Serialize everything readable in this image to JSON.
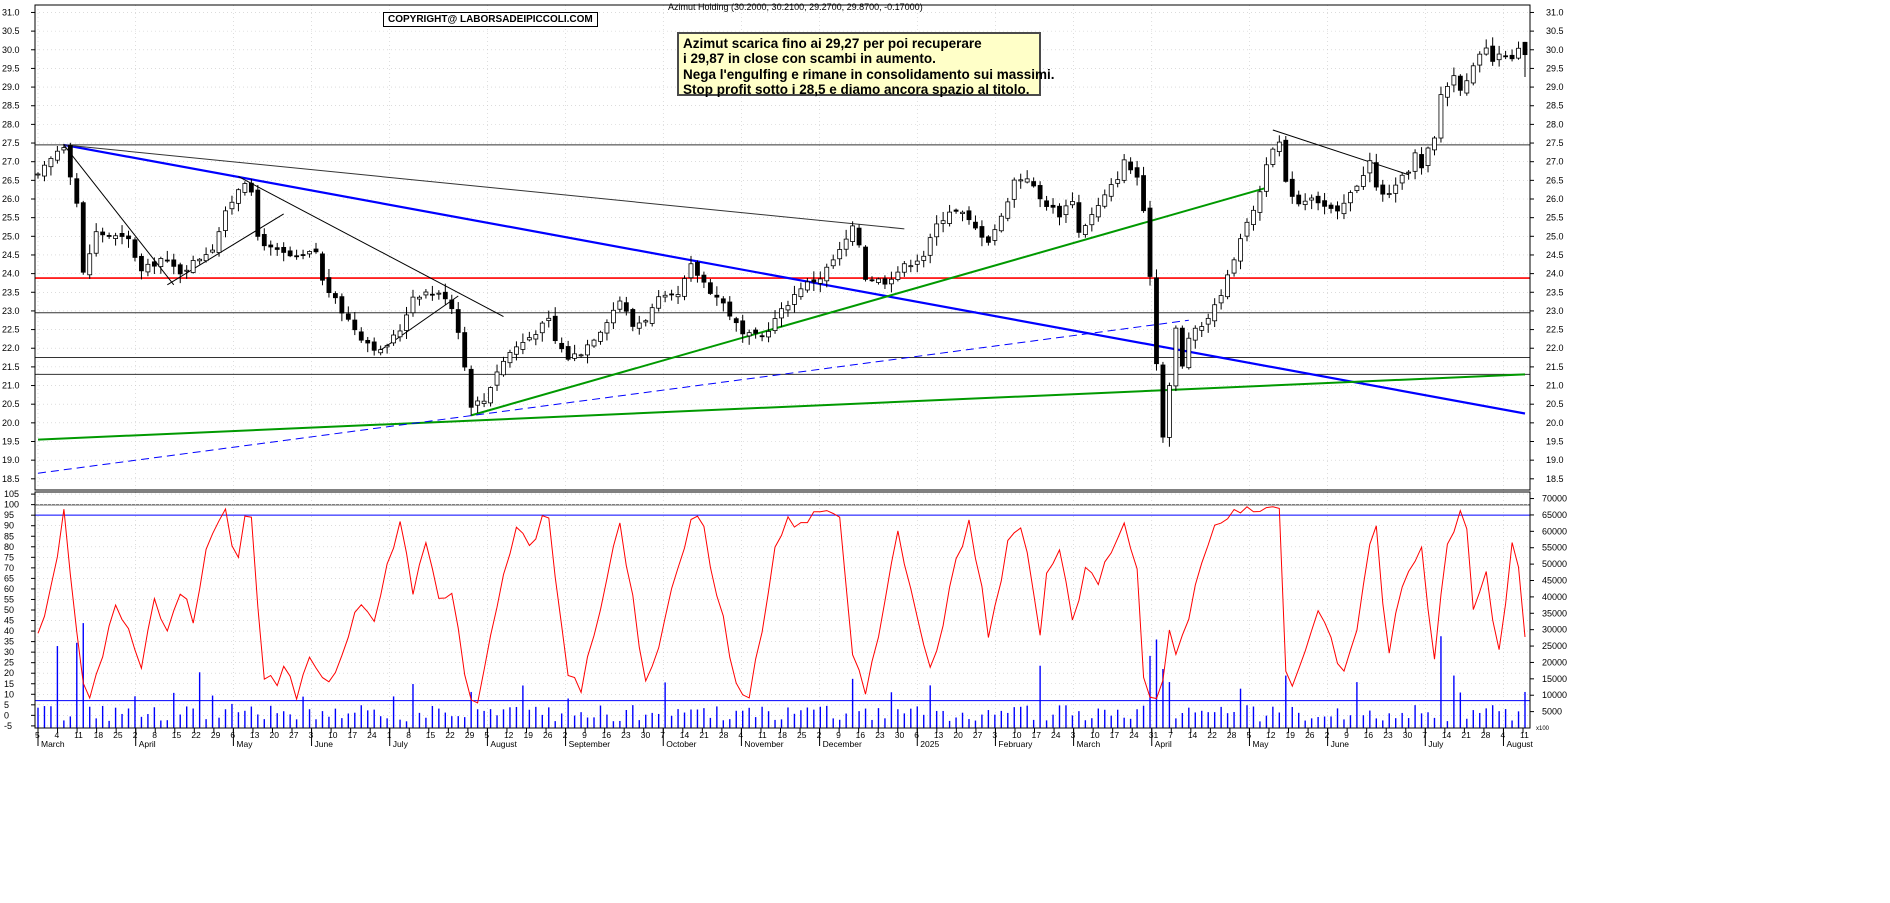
{
  "header": {
    "title": "Azimut Holding (30.2000, 30.2100, 29.2700, 29.8700, -0.17000)",
    "copyright": "COPYRIGHT@ LABORSADEIPICCOLI.COM"
  },
  "annotation": {
    "lines": [
      "Azimut scarica fino ai 29,27 per poi recuperare",
      "i 29,87 in close con scambi in aumento.",
      "Nega l'engulfing e rimane in consolidamento sui massimi.",
      "Stop profit sotto i 28,5 e diamo ancora spazio al titolo."
    ]
  },
  "colors": {
    "candle": "#000000",
    "stochastic": "#ff0000",
    "volume": "#0000ff",
    "trend_blue": "#0000ff",
    "trend_green": "#009900",
    "resistance_red": "#ff0000",
    "annotation_bg": "#ffffc8"
  },
  "chart_data": {
    "type": "candlestick",
    "price_axis": {
      "range": [
        18.2,
        31.2
      ],
      "ticks": [
        "18.5",
        "19.0",
        "19.5",
        "20.0",
        "20.5",
        "21.0",
        "21.5",
        "22.0",
        "22.5",
        "23.0",
        "23.5",
        "24.0",
        "24.5",
        "25.0",
        "25.5",
        "26.0",
        "26.5",
        "27.0",
        "27.5",
        "28.0",
        "28.5",
        "29.0",
        "29.5",
        "30.0",
        "30.5",
        "31.0"
      ]
    },
    "oscillator_axis": {
      "range": [
        -6,
        106
      ],
      "ticks": [
        "-5",
        "0",
        "5",
        "10",
        "15",
        "20",
        "25",
        "30",
        "35",
        "40",
        "45",
        "50",
        "55",
        "60",
        "65",
        "70",
        "75",
        "80",
        "85",
        "90",
        "95",
        "100",
        "105"
      ],
      "levels": [
        95,
        7
      ]
    },
    "volume_axis": {
      "range": [
        0,
        72000
      ],
      "ticks": [
        "5000",
        "10000",
        "15000",
        "20000",
        "25000",
        "30000",
        "35000",
        "40000",
        "45000",
        "50000",
        "55000",
        "60000",
        "65000",
        "70000"
      ],
      "unit_label": "x100"
    },
    "x_axis": {
      "day_labels": [
        "5",
        "4",
        "11",
        "18",
        "25",
        "2",
        "8",
        "15",
        "22",
        "29",
        "6",
        "13",
        "20",
        "27",
        "3",
        "10",
        "17",
        "24",
        "1",
        "8",
        "15",
        "22",
        "29",
        "5",
        "12",
        "19",
        "26",
        "2",
        "9",
        "16",
        "23",
        "30",
        "7",
        "14",
        "21",
        "28",
        "4",
        "11",
        "18",
        "25",
        "2",
        "9",
        "16",
        "23",
        "30",
        "6",
        "13",
        "20",
        "27",
        "3",
        "10",
        "17",
        "24",
        "3",
        "10",
        "17",
        "24",
        "31",
        "7",
        "14",
        "22",
        "28",
        "5",
        "12",
        "19",
        "26",
        "2",
        "9",
        "16",
        "23",
        "30",
        "7",
        "14",
        "21",
        "28",
        "4",
        "11"
      ],
      "month_labels": [
        "March",
        "April",
        "May",
        "June",
        "July",
        "August",
        "September",
        "October",
        "November",
        "December",
        "2025",
        "February",
        "March",
        "April",
        "May",
        "June",
        "July",
        "August"
      ],
      "month_positions": [
        0,
        5,
        10,
        14,
        18,
        23,
        27,
        32,
        36,
        40,
        45,
        49,
        53,
        57,
        62,
        66,
        71,
        75
      ]
    },
    "price_anchors": [
      [
        0,
        26.6
      ],
      [
        3,
        27.3
      ],
      [
        4,
        27.45
      ],
      [
        6,
        25.9
      ],
      [
        7,
        24.0
      ],
      [
        9,
        25.1
      ],
      [
        14,
        24.9
      ],
      [
        16,
        24.05
      ],
      [
        19,
        24.4
      ],
      [
        22,
        24.05
      ],
      [
        24,
        24.3
      ],
      [
        27,
        24.7
      ],
      [
        29,
        25.6
      ],
      [
        31,
        26.3
      ],
      [
        32,
        26.5
      ],
      [
        33,
        26.1
      ],
      [
        34,
        25.0
      ],
      [
        36,
        24.65
      ],
      [
        40,
        24.4
      ],
      [
        43,
        24.6
      ],
      [
        44,
        23.8
      ],
      [
        47,
        23.0
      ],
      [
        50,
        22.3
      ],
      [
        53,
        21.9
      ],
      [
        56,
        22.5
      ],
      [
        58,
        23.4
      ],
      [
        60,
        23.5
      ],
      [
        63,
        23.4
      ],
      [
        64,
        23.1
      ],
      [
        65,
        22.5
      ],
      [
        66,
        21.5
      ],
      [
        67,
        20.5
      ],
      [
        69,
        20.6
      ],
      [
        71,
        21.4
      ],
      [
        73,
        21.9
      ],
      [
        76,
        22.3
      ],
      [
        79,
        22.75
      ],
      [
        80,
        22.2
      ],
      [
        82,
        21.75
      ],
      [
        84,
        21.9
      ],
      [
        87,
        22.5
      ],
      [
        90,
        23.3
      ],
      [
        92,
        22.6
      ],
      [
        94,
        22.8
      ],
      [
        96,
        23.3
      ],
      [
        99,
        23.4
      ],
      [
        101,
        24.2
      ],
      [
        104,
        23.55
      ],
      [
        106,
        23.2
      ],
      [
        109,
        22.35
      ],
      [
        112,
        22.3
      ],
      [
        115,
        23.0
      ],
      [
        118,
        23.65
      ],
      [
        121,
        23.9
      ],
      [
        124,
        24.6
      ],
      [
        126,
        25.2
      ],
      [
        127,
        24.8
      ],
      [
        128,
        23.9
      ],
      [
        131,
        23.8
      ],
      [
        134,
        24.2
      ],
      [
        137,
        24.5
      ],
      [
        139,
        25.3
      ],
      [
        141,
        25.7
      ],
      [
        143,
        25.6
      ],
      [
        145,
        25.2
      ],
      [
        147,
        24.9
      ],
      [
        149,
        25.5
      ],
      [
        151,
        26.5
      ],
      [
        153,
        26.6
      ],
      [
        155,
        26.0
      ],
      [
        158,
        25.6
      ],
      [
        160,
        26.0
      ],
      [
        161,
        25.1
      ],
      [
        164,
        25.8
      ],
      [
        167,
        26.6
      ],
      [
        168,
        27.0
      ],
      [
        170,
        26.6
      ],
      [
        171,
        25.6
      ],
      [
        172,
        24.0
      ],
      [
        173,
        21.6
      ],
      [
        174,
        19.7
      ],
      [
        175,
        21.0
      ],
      [
        176,
        22.5
      ],
      [
        177,
        21.5
      ],
      [
        178,
        22.3
      ],
      [
        180,
        22.6
      ],
      [
        182,
        23.1
      ],
      [
        184,
        23.9
      ],
      [
        186,
        25.0
      ],
      [
        187,
        25.3
      ],
      [
        189,
        26.2
      ],
      [
        190,
        27.0
      ],
      [
        192,
        27.5
      ],
      [
        193,
        26.4
      ],
      [
        195,
        25.9
      ],
      [
        197,
        26.1
      ],
      [
        199,
        25.8
      ],
      [
        201,
        25.6
      ],
      [
        204,
        26.4
      ],
      [
        206,
        27.0
      ],
      [
        207,
        26.3
      ],
      [
        208,
        26.1
      ],
      [
        210,
        26.3
      ],
      [
        212,
        26.8
      ],
      [
        213,
        27.2
      ],
      [
        214,
        26.8
      ],
      [
        215,
        27.3
      ],
      [
        216,
        27.6
      ],
      [
        217,
        28.8
      ],
      [
        219,
        29.3
      ],
      [
        220,
        29.0
      ],
      [
        222,
        29.5
      ],
      [
        223,
        29.8
      ],
      [
        224,
        30.0
      ],
      [
        225,
        29.7
      ],
      [
        227,
        29.9
      ],
      [
        228,
        29.7
      ],
      [
        229,
        30.0
      ],
      [
        230,
        29.87
      ]
    ],
    "candles": {
      "count": 231,
      "last": {
        "open": 30.2,
        "high": 30.21,
        "low": 29.27,
        "close": 29.87,
        "change": -0.17
      }
    },
    "horizontal_levels": [
      {
        "value": 27.45,
        "color": "#333333"
      },
      {
        "value": 23.88,
        "color": "#ff0000"
      },
      {
        "value": 22.95,
        "color": "#333333"
      },
      {
        "value": 21.75,
        "color": "#333333"
      },
      {
        "value": 21.3,
        "color": "#333333"
      },
      {
        "value": 17.8,
        "color": "#333333"
      }
    ],
    "trendlines": [
      {
        "from": [
          4,
          27.45
        ],
        "to": [
          230,
          20.25
        ],
        "color": "#0000ff",
        "width": 2.2
      },
      {
        "from": [
          0,
          19.55
        ],
        "to": [
          230,
          21.3
        ],
        "color": "#009900",
        "width": 2
      },
      {
        "from": [
          67,
          20.2
        ],
        "to": [
          190,
          26.3
        ],
        "color": "#009900",
        "width": 2
      },
      {
        "from": [
          0,
          18.65
        ],
        "to": [
          178,
          22.75
        ],
        "color": "#0000ff",
        "width": 1,
        "dashed": true
      },
      {
        "from": [
          4,
          27.45
        ],
        "to": [
          134,
          25.2
        ],
        "color": "#333333",
        "width": 1
      },
      {
        "from": [
          4,
          27.45
        ],
        "to": [
          21,
          23.7
        ],
        "color": "#000000",
        "width": 1
      },
      {
        "from": [
          20,
          23.7
        ],
        "to": [
          38,
          25.6
        ],
        "color": "#000000",
        "width": 1
      },
      {
        "from": [
          31,
          26.6
        ],
        "to": [
          72,
          22.85
        ],
        "color": "#000000",
        "width": 1
      },
      {
        "from": [
          53,
          21.95
        ],
        "to": [
          65,
          23.4
        ],
        "color": "#000000",
        "width": 1
      },
      {
        "from": [
          191,
          27.85
        ],
        "to": [
          212,
          26.65
        ],
        "color": "#000000",
        "width": 1
      }
    ],
    "stochastic_anchors": [
      [
        0,
        40
      ],
      [
        2,
        60
      ],
      [
        4,
        95
      ],
      [
        6,
        40
      ],
      [
        7,
        15
      ],
      [
        8,
        8
      ],
      [
        10,
        30
      ],
      [
        12,
        55
      ],
      [
        14,
        40
      ],
      [
        16,
        25
      ],
      [
        18,
        55
      ],
      [
        20,
        40
      ],
      [
        22,
        60
      ],
      [
        24,
        45
      ],
      [
        26,
        80
      ],
      [
        28,
        92
      ],
      [
        29,
        95
      ],
      [
        30,
        80
      ],
      [
        31,
        72
      ],
      [
        32,
        95
      ],
      [
        33,
        92
      ],
      [
        34,
        50
      ],
      [
        35,
        20
      ],
      [
        37,
        15
      ],
      [
        38,
        25
      ],
      [
        40,
        10
      ],
      [
        42,
        30
      ],
      [
        44,
        15
      ],
      [
        46,
        18
      ],
      [
        48,
        40
      ],
      [
        50,
        55
      ],
      [
        52,
        45
      ],
      [
        54,
        70
      ],
      [
        56,
        90
      ],
      [
        58,
        60
      ],
      [
        60,
        80
      ],
      [
        62,
        55
      ],
      [
        64,
        60
      ],
      [
        66,
        20
      ],
      [
        67,
        8
      ],
      [
        68,
        5
      ],
      [
        70,
        35
      ],
      [
        72,
        65
      ],
      [
        74,
        90
      ],
      [
        76,
        78
      ],
      [
        78,
        95
      ],
      [
        79,
        96
      ],
      [
        81,
        40
      ],
      [
        82,
        20
      ],
      [
        84,
        10
      ],
      [
        86,
        40
      ],
      [
        88,
        65
      ],
      [
        90,
        90
      ],
      [
        92,
        55
      ],
      [
        93,
        30
      ],
      [
        94,
        15
      ],
      [
        96,
        35
      ],
      [
        98,
        60
      ],
      [
        100,
        80
      ],
      [
        101,
        95
      ],
      [
        103,
        90
      ],
      [
        104,
        70
      ],
      [
        106,
        45
      ],
      [
        108,
        15
      ],
      [
        110,
        10
      ],
      [
        112,
        40
      ],
      [
        114,
        80
      ],
      [
        116,
        92
      ],
      [
        118,
        92
      ],
      [
        120,
        94
      ],
      [
        122,
        95
      ],
      [
        124,
        96
      ],
      [
        126,
        30
      ],
      [
        127,
        20
      ],
      [
        128,
        10
      ],
      [
        130,
        40
      ],
      [
        132,
        70
      ],
      [
        133,
        88
      ],
      [
        135,
        60
      ],
      [
        137,
        35
      ],
      [
        138,
        20
      ],
      [
        140,
        45
      ],
      [
        142,
        75
      ],
      [
        144,
        90
      ],
      [
        146,
        60
      ],
      [
        147,
        38
      ],
      [
        149,
        65
      ],
      [
        150,
        85
      ],
      [
        152,
        90
      ],
      [
        154,
        60
      ],
      [
        155,
        40
      ],
      [
        156,
        65
      ],
      [
        158,
        80
      ],
      [
        160,
        45
      ],
      [
        162,
        70
      ],
      [
        164,
        60
      ],
      [
        166,
        80
      ],
      [
        168,
        92
      ],
      [
        170,
        70
      ],
      [
        171,
        20
      ],
      [
        172,
        6
      ],
      [
        173,
        5
      ],
      [
        174,
        15
      ],
      [
        175,
        40
      ],
      [
        176,
        30
      ],
      [
        178,
        45
      ],
      [
        180,
        75
      ],
      [
        182,
        88
      ],
      [
        184,
        94
      ],
      [
        186,
        96
      ],
      [
        188,
        97
      ],
      [
        190,
        98
      ],
      [
        192,
        98
      ],
      [
        193,
        20
      ],
      [
        194,
        15
      ],
      [
        196,
        30
      ],
      [
        198,
        50
      ],
      [
        200,
        35
      ],
      [
        202,
        20
      ],
      [
        204,
        40
      ],
      [
        206,
        82
      ],
      [
        207,
        90
      ],
      [
        208,
        55
      ],
      [
        209,
        30
      ],
      [
        210,
        50
      ],
      [
        212,
        70
      ],
      [
        214,
        80
      ],
      [
        216,
        25
      ],
      [
        217,
        60
      ],
      [
        218,
        80
      ],
      [
        220,
        95
      ],
      [
        221,
        90
      ],
      [
        222,
        50
      ],
      [
        224,
        70
      ],
      [
        225,
        45
      ],
      [
        226,
        30
      ],
      [
        227,
        50
      ],
      [
        228,
        80
      ],
      [
        229,
        70
      ],
      [
        230,
        40
      ]
    ],
    "volume_levels": [
      5000,
      9000
    ]
  }
}
